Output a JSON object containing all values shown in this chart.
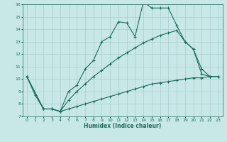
{
  "xlabel": "Humidex (Indice chaleur)",
  "bg_color": "#c8e8e8",
  "line_color": "#1a6b5a",
  "grid_color": "#aacccc",
  "xlim": [
    -0.5,
    23.5
  ],
  "ylim": [
    7,
    16
  ],
  "yticks": [
    7,
    8,
    9,
    10,
    11,
    12,
    13,
    14,
    15,
    16
  ],
  "xticks": [
    0,
    1,
    2,
    3,
    4,
    5,
    6,
    7,
    8,
    9,
    10,
    11,
    12,
    13,
    14,
    15,
    16,
    17,
    18,
    19,
    20,
    21,
    22,
    23
  ],
  "line1_x": [
    0,
    1,
    2,
    3,
    4,
    5,
    6,
    7,
    8,
    9,
    10,
    11,
    12,
    13,
    14,
    15,
    16,
    17,
    18,
    19,
    20,
    21,
    22
  ],
  "line1_y": [
    10.2,
    8.7,
    7.6,
    7.6,
    7.4,
    9.0,
    9.5,
    10.8,
    11.5,
    13.0,
    13.4,
    14.6,
    14.5,
    13.4,
    16.2,
    15.7,
    15.7,
    15.7,
    14.3,
    13.0,
    12.4,
    10.8,
    10.2
  ],
  "line2_x": [
    0,
    2,
    3,
    4,
    5,
    6,
    7,
    8,
    9,
    10,
    11,
    12,
    13,
    14,
    15,
    16,
    17,
    18,
    19,
    20,
    21,
    22,
    23
  ],
  "line2_y": [
    10.2,
    7.6,
    7.6,
    7.4,
    8.3,
    9.0,
    9.6,
    10.2,
    10.7,
    11.2,
    11.7,
    12.1,
    12.5,
    12.9,
    13.2,
    13.5,
    13.7,
    13.9,
    13.0,
    12.4,
    10.4,
    10.2,
    10.2
  ],
  "line3_x": [
    0,
    2,
    3,
    4,
    5,
    6,
    7,
    8,
    9,
    10,
    11,
    12,
    13,
    14,
    15,
    16,
    17,
    18,
    19,
    20,
    21,
    22,
    23
  ],
  "line3_y": [
    10.2,
    7.6,
    7.6,
    7.4,
    7.6,
    7.8,
    8.0,
    8.2,
    8.4,
    8.6,
    8.8,
    9.0,
    9.2,
    9.4,
    9.6,
    9.7,
    9.8,
    9.9,
    10.0,
    10.1,
    10.1,
    10.2,
    10.2
  ]
}
